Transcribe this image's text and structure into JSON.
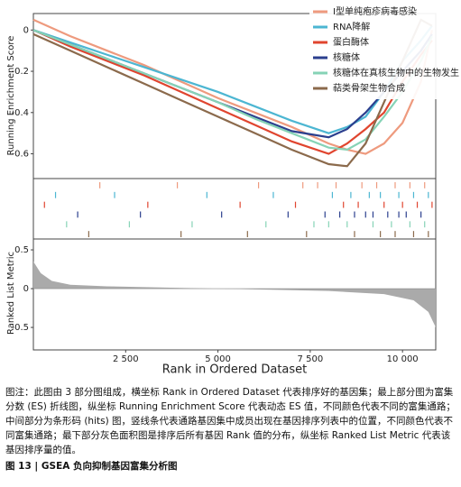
{
  "chart_data": [
    {
      "type": "line",
      "x_label": "Rank in Ordered Dataset",
      "y_label": "Running Enrichment Score",
      "xlim": [
        0,
        10900
      ],
      "ylim": [
        -0.72,
        0.08
      ],
      "xticks": [
        {
          "value": 2500,
          "label": "2 500"
        },
        {
          "value": 5000,
          "label": "5 000"
        },
        {
          "value": 7500,
          "label": "7 500"
        },
        {
          "value": 10000,
          "label": "10 000"
        }
      ],
      "yticks": [
        0,
        -0.2,
        -0.4,
        -0.6
      ],
      "legend": "upper right",
      "x": [
        0,
        1000,
        2000,
        3000,
        4000,
        5000,
        6000,
        7000,
        8000,
        8500,
        9000,
        9500,
        10000,
        10500,
        10800
      ],
      "series": [
        {
          "name": "Ⅰ型单纯疱疹病毒感染",
          "color": "#ee9a7e",
          "values": [
            0.05,
            -0.03,
            -0.1,
            -0.17,
            -0.25,
            -0.33,
            -0.4,
            -0.47,
            -0.55,
            -0.58,
            -0.6,
            -0.55,
            -0.45,
            -0.25,
            0
          ],
          "hits": [
            1800,
            3900,
            6100,
            7300,
            7700,
            8200,
            8900,
            9300,
            9800,
            10200,
            10600
          ]
        },
        {
          "name": "RNA降解",
          "color": "#4cb6d2",
          "values": [
            0,
            -0.06,
            -0.12,
            -0.18,
            -0.24,
            -0.3,
            -0.37,
            -0.44,
            -0.5,
            -0.47,
            -0.42,
            -0.3,
            -0.15,
            -0.05,
            0.02
          ],
          "hits": [
            600,
            2200,
            4700,
            6500,
            8100,
            8600,
            9100,
            9400,
            9900,
            10300,
            10700
          ]
        },
        {
          "name": "蛋白酶体",
          "color": "#e0452f",
          "values": [
            0,
            -0.08,
            -0.15,
            -0.22,
            -0.3,
            -0.38,
            -0.46,
            -0.54,
            -0.6,
            -0.55,
            -0.48,
            -0.4,
            -0.25,
            -0.12,
            -0.05
          ],
          "hits": [
            300,
            3100,
            5600,
            7100,
            8400,
            8800,
            9500,
            10000,
            10400,
            10800
          ]
        },
        {
          "name": "核糖体",
          "color": "#2b3f8e",
          "values": [
            0,
            -0.07,
            -0.14,
            -0.21,
            -0.28,
            -0.35,
            -0.42,
            -0.49,
            -0.52,
            -0.48,
            -0.4,
            -0.3,
            -0.2,
            -0.1,
            -0.02
          ],
          "hits": [
            1200,
            2900,
            5100,
            6900,
            7900,
            8300,
            8700,
            9000,
            9200,
            9600,
            9900,
            10100,
            10500
          ]
        },
        {
          "name": "核糖体在真核生物中的生物发生",
          "color": "#86d3b6",
          "values": [
            0,
            -0.07,
            -0.14,
            -0.21,
            -0.28,
            -0.35,
            -0.43,
            -0.5,
            -0.57,
            -0.58,
            -0.53,
            -0.42,
            -0.3,
            -0.15,
            -0.03
          ],
          "hits": [
            900,
            2600,
            4300,
            6300,
            7600,
            8000,
            8500,
            9200,
            9700,
            10200,
            10600
          ]
        },
        {
          "name": "萜类骨架生物合成",
          "color": "#8b6a4c",
          "values": [
            -0.02,
            -0.1,
            -0.18,
            -0.26,
            -0.34,
            -0.42,
            -0.5,
            -0.58,
            -0.65,
            -0.66,
            -0.55,
            -0.35,
            -0.15,
            0.05,
            0.02
          ],
          "hits": [
            1500,
            4000,
            5800,
            7400,
            8700,
            9400,
            9800,
            10300,
            10700
          ]
        }
      ]
    },
    {
      "type": "area",
      "y_label": "Ranked List Metric",
      "color": "#aaaaaa",
      "xlim": [
        0,
        10900
      ],
      "ylim": [
        -0.79,
        0.64
      ],
      "yticks": [
        0.5,
        0,
        -0.5
      ],
      "x": [
        0,
        200,
        500,
        1000,
        2000,
        4000,
        6000,
        8000,
        9500,
        10300,
        10700,
        10900
      ],
      "values": [
        0.35,
        0.2,
        0.1,
        0.05,
        0.03,
        0.01,
        -0.01,
        -0.03,
        -0.07,
        -0.15,
        -0.3,
        -0.5
      ]
    }
  ],
  "caption": {
    "text": "图注：此图由 3 部分图组成，横坐标 Rank in Ordered Dataset 代表排序好的基因集；最上部分图为富集分数 (ES) 折线图，纵坐标 Running Enrichment Score 代表动态 ES 值，不同颜色代表不同的富集通路；中间部分为条形码 (hits) 图，竖线条代表通路基因集中成员出现在基因排序列表中的位置，不同颜色代表不同富集通路；最下部分灰色面积图是排序后所有基因 Rank 值的分布，纵坐标 Ranked List Metric 代表该基因排序量的值。",
    "label": "图 13 | GSEA 负向抑制基因富集分析图"
  }
}
